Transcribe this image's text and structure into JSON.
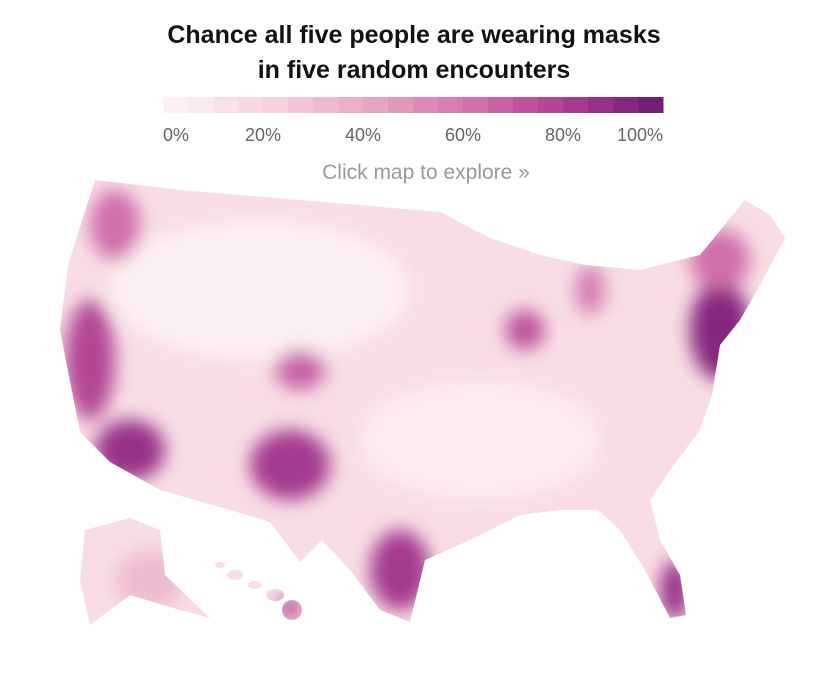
{
  "title_lines": [
    "Chance all five people are wearing masks",
    "in five random encounters"
  ],
  "legend": {
    "range": [
      0,
      100
    ],
    "ticks": [
      {
        "value": 0,
        "label": "0%"
      },
      {
        "value": 20,
        "label": "20%"
      },
      {
        "value": 40,
        "label": "40%"
      },
      {
        "value": 60,
        "label": "60%"
      },
      {
        "value": 80,
        "label": "80%"
      },
      {
        "value": 100,
        "label": "100%"
      }
    ],
    "colors": [
      "#fdf1f3",
      "#fbe9ed",
      "#f9e1e8",
      "#f7d8e2",
      "#f4cfdc",
      "#f1c5d6",
      "#eebbd0",
      "#eab0ca",
      "#e6a4c3",
      "#e198bd",
      "#dc8bb7",
      "#d67eb1",
      "#cf70aa",
      "#c762a4",
      "#bd549d",
      "#b24796",
      "#a53b8f",
      "#973187",
      "#86287f",
      "#722076"
    ]
  },
  "prompt": "Click map to explore »"
}
